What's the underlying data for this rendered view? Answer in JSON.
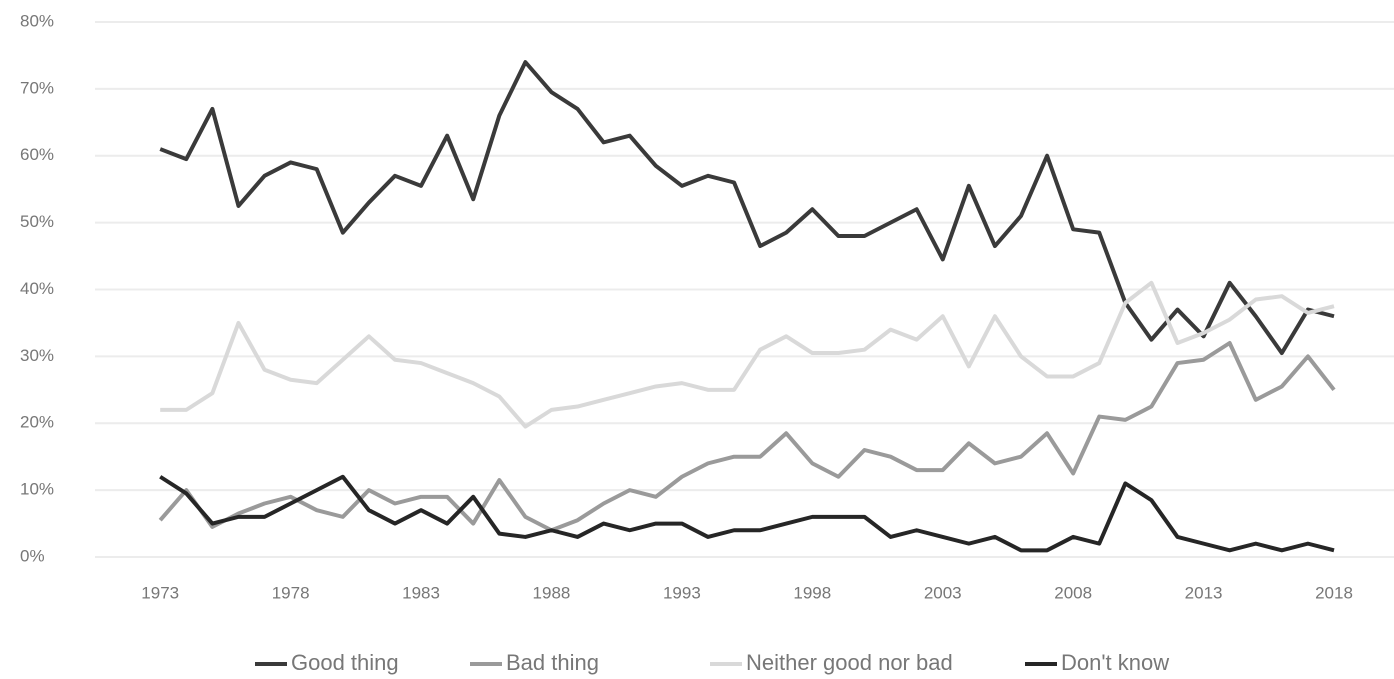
{
  "chart_data": {
    "type": "line",
    "x": [
      1973,
      1974,
      1975,
      1976,
      1977,
      1978,
      1979,
      1980,
      1981,
      1982,
      1983,
      1984,
      1985,
      1986,
      1987,
      1988,
      1989,
      1990,
      1991,
      1992,
      1993,
      1994,
      1995,
      1996,
      1997,
      1998,
      1999,
      2000,
      2001,
      2002,
      2003,
      2004,
      2005,
      2006,
      2007,
      2008,
      2009,
      2010,
      2011,
      2012,
      2013,
      2014,
      2015,
      2016,
      2017,
      2018
    ],
    "series": [
      {
        "name": "Good thing",
        "color": "#3a3a3a",
        "values": [
          61,
          59.5,
          67,
          52.5,
          57,
          59,
          58,
          48.5,
          53,
          57,
          55.5,
          63,
          53.5,
          66,
          74,
          69.5,
          67,
          62,
          63,
          58.5,
          55.5,
          57,
          56,
          46.5,
          48.5,
          52,
          48,
          48,
          50,
          52,
          44.5,
          55.5,
          46.5,
          51,
          60,
          49,
          48.5,
          38,
          32.5,
          37,
          33,
          41,
          36,
          30.5,
          37,
          36
        ]
      },
      {
        "name": "Bad thing",
        "color": "#9a9a9a",
        "values": [
          5.5,
          10,
          4.5,
          6.5,
          8,
          9,
          7,
          6,
          10,
          8,
          9,
          9,
          5,
          11.5,
          6,
          4,
          5.5,
          8,
          10,
          9,
          12,
          14,
          15,
          15,
          18.5,
          14,
          12,
          16,
          15,
          13,
          13,
          17,
          14,
          15,
          18.5,
          12.5,
          21,
          20.5,
          22.5,
          29,
          29.5,
          32,
          23.5,
          25.5,
          30,
          25
        ]
      },
      {
        "name": "Neither good nor bad",
        "color": "#d9d9d9",
        "values": [
          22,
          22,
          24.5,
          35,
          28,
          26.5,
          26,
          29.5,
          33,
          29.5,
          29,
          27.5,
          26,
          24,
          19.5,
          22,
          22.5,
          23.5,
          24.5,
          25.5,
          26,
          25,
          25,
          31,
          33,
          30.5,
          30.5,
          31,
          34,
          32.5,
          36,
          28.5,
          36,
          30,
          27,
          27,
          29,
          38,
          41,
          32,
          33.5,
          35.5,
          38.5,
          39,
          36.5,
          37.5
        ]
      },
      {
        "name": "Don't know",
        "color": "#262626",
        "values": [
          12,
          9.5,
          5,
          6,
          6,
          8,
          10,
          12,
          7,
          5,
          7,
          5,
          9,
          3.5,
          3,
          4,
          3,
          5,
          4,
          5,
          5,
          3,
          4,
          4,
          5,
          6,
          6,
          6,
          3,
          4,
          3,
          2,
          3,
          1,
          1,
          3,
          2,
          11,
          8.5,
          3,
          2,
          1,
          2,
          1,
          2,
          1
        ]
      }
    ],
    "xlim": [
      1970.5,
      2020.3
    ],
    "xticks": [
      1973,
      1978,
      1983,
      1988,
      1993,
      1998,
      2003,
      2008,
      2013,
      2018
    ],
    "ylim": [
      0,
      80
    ],
    "yticks": [
      {
        "value": 0,
        "label": "0%"
      },
      {
        "value": 10,
        "label": "10%"
      },
      {
        "value": 20,
        "label": "20%"
      },
      {
        "value": 30,
        "label": "30%"
      },
      {
        "value": 40,
        "label": "40%"
      },
      {
        "value": 50,
        "label": "50%"
      },
      {
        "value": 60,
        "label": "60%"
      },
      {
        "value": 70,
        "label": "70%"
      },
      {
        "value": 80,
        "label": "80%"
      }
    ],
    "grid": true,
    "legend": "bottom"
  }
}
